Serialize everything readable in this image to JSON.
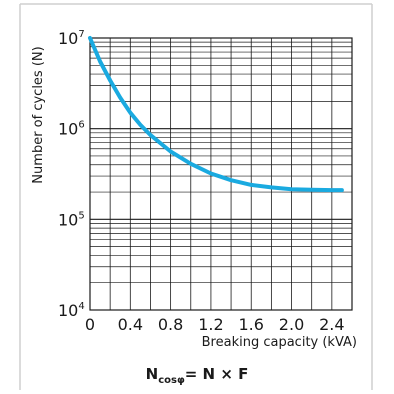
{
  "chart_data": {
    "type": "line",
    "title": "",
    "xlabel": "Breaking capacity (kVA)",
    "ylabel": "Number of cycles (N)",
    "x_ticks": [
      "0",
      "0.4",
      "0.8",
      "1.2",
      "1.6",
      "2.0",
      "2.4"
    ],
    "y_ticks": [
      {
        "base": "10",
        "exp": "4"
      },
      {
        "base": "10",
        "exp": "5"
      },
      {
        "base": "10",
        "exp": "6"
      },
      {
        "base": "10",
        "exp": "7"
      }
    ],
    "xlim": [
      0,
      2.6
    ],
    "ylim": [
      10000,
      10000000
    ],
    "y_scale": "log",
    "grid": true,
    "x": [
      0,
      0.1,
      0.2,
      0.3,
      0.4,
      0.5,
      0.6,
      0.8,
      1.0,
      1.2,
      1.4,
      1.6,
      1.8,
      2.0,
      2.2,
      2.4,
      2.5
    ],
    "y": [
      10000000,
      5500000,
      3400000,
      2200000,
      1500000,
      1100000,
      850000,
      560000,
      410000,
      320000,
      270000,
      240000,
      225000,
      215000,
      212000,
      210000,
      210000
    ],
    "line_color": "#1aaae0"
  },
  "formula": {
    "n_cos": "N",
    "sub": "cosφ",
    "rest": "= N × F"
  },
  "colors": {
    "frame": "#cfcfcf",
    "grid": "#1a1a1a",
    "curve": "#1aaae0"
  }
}
